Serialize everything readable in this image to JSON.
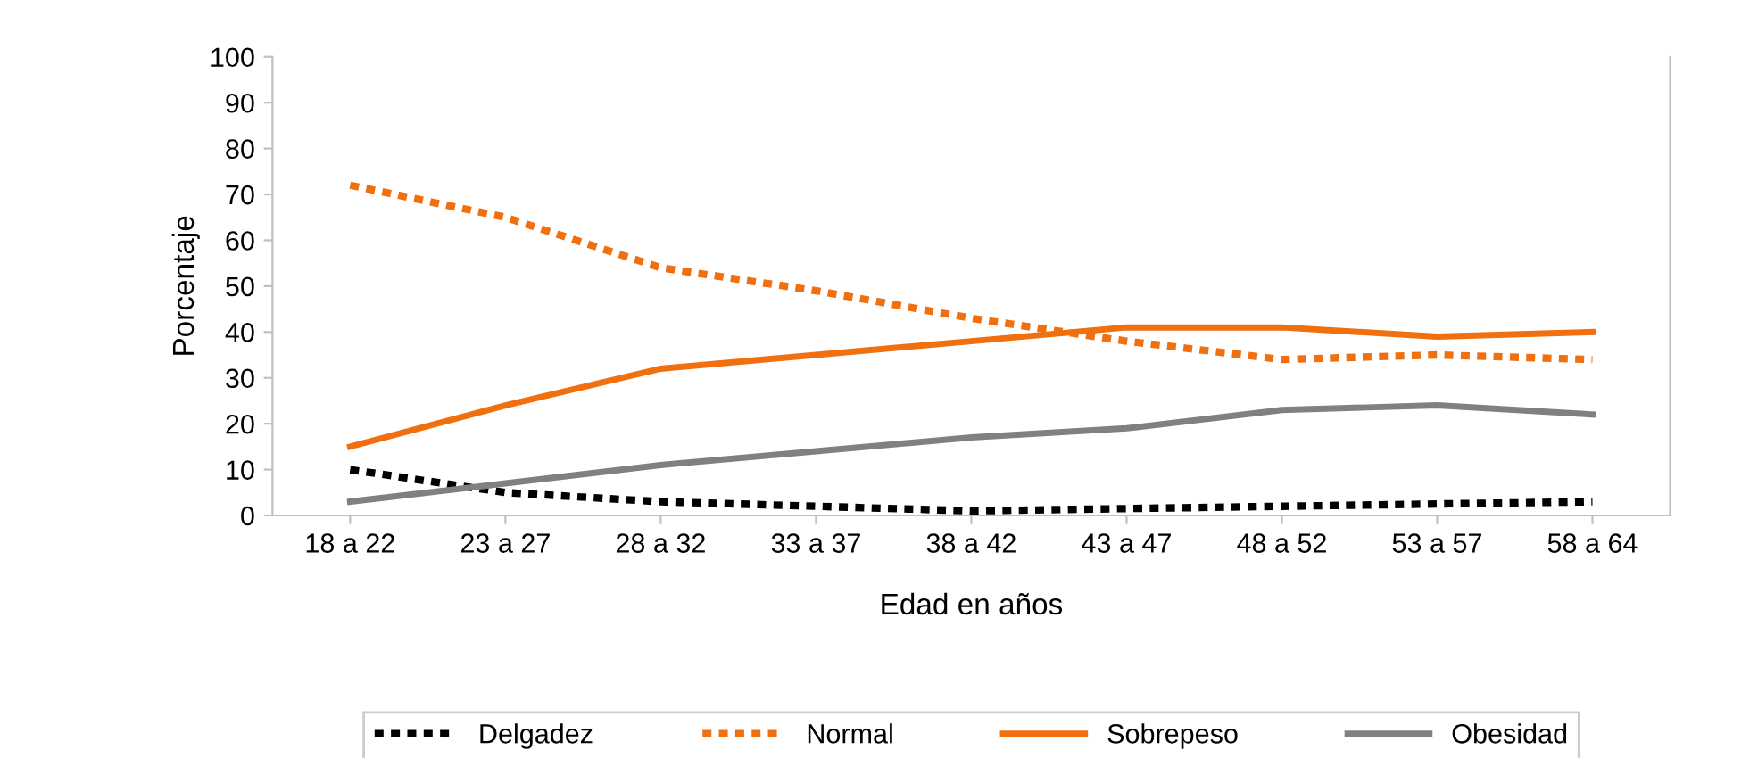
{
  "chart_data": {
    "type": "line",
    "xlabel": "Edad en años",
    "ylabel": "Porcentaje",
    "categories": [
      "18 a 22",
      "23 a 27",
      "28 a 32",
      "33 a 37",
      "38 a 42",
      "43 a 47",
      "48 a 52",
      "53 a 57",
      "58 a 64"
    ],
    "series": [
      {
        "name": "Delgadez",
        "color": "#000000",
        "line_style": "dotted",
        "values": [
          10,
          5,
          3,
          2,
          1,
          1.5,
          2,
          2.5,
          3
        ]
      },
      {
        "name": "Normal",
        "color": "#f07010",
        "line_style": "dotted",
        "values": [
          72,
          65,
          54,
          49,
          43,
          38,
          34,
          35,
          34
        ]
      },
      {
        "name": "Sobrepeso",
        "color": "#f07010",
        "line_style": "solid",
        "values": [
          15,
          24,
          32,
          35,
          38,
          41,
          41,
          39,
          40
        ]
      },
      {
        "name": "Obesidad",
        "color": "#808080",
        "line_style": "solid",
        "values": [
          3,
          7,
          11,
          14,
          17,
          19,
          23,
          24,
          22
        ]
      }
    ],
    "ylim": [
      0,
      100
    ],
    "yticks": [
      0,
      10,
      20,
      30,
      40,
      50,
      60,
      70,
      80,
      90,
      100
    ],
    "grid": false,
    "legend": "bottom",
    "marker": "none"
  }
}
